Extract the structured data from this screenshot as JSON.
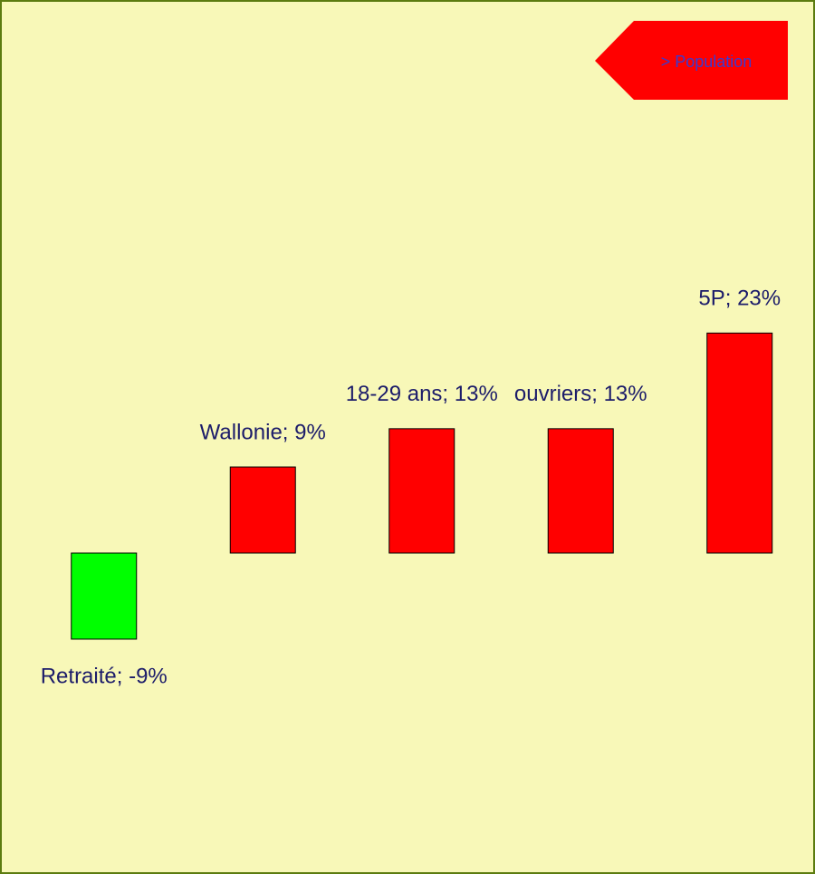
{
  "chart_data": {
    "type": "bar",
    "categories": [
      "Retraité",
      "Wallonie",
      "18-29 ans",
      "ouvriers",
      "5P"
    ],
    "values": [
      -9,
      9,
      13,
      13,
      23
    ],
    "value_labels": [
      "Retraité; -9%",
      "Wallonie; 9%",
      "18-29 ans; 13%",
      "ouvriers; 13%",
      "5P; 23%"
    ],
    "colors": [
      "#00ff00",
      "#ff0000",
      "#ff0000",
      "#ff0000",
      "#ff0000"
    ],
    "annotation": "> Population"
  }
}
